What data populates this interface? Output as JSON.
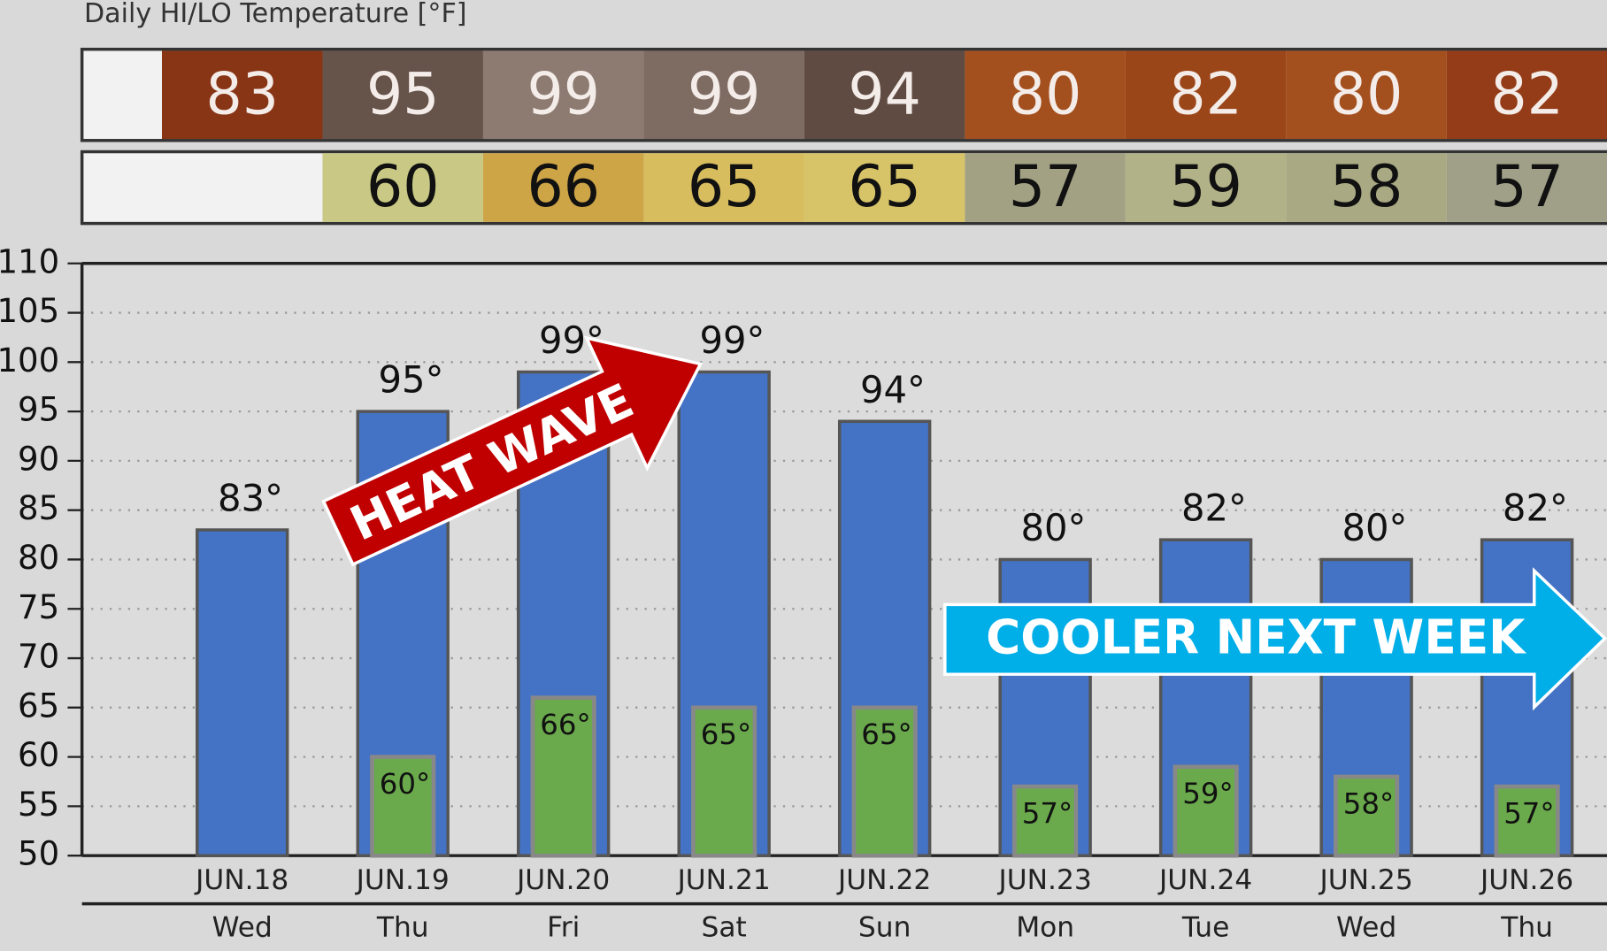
{
  "chart_data": {
    "type": "bar",
    "title": "Daily HI/LO Temperature [°F]",
    "categories": [
      "JUN.18",
      "JUN.19",
      "JUN.20",
      "JUN.21",
      "JUN.22",
      "JUN.23",
      "JUN.24",
      "JUN.25",
      "JUN.26"
    ],
    "weekdays": [
      "Wed",
      "Thu",
      "Fri",
      "Sat",
      "Sun",
      "Mon",
      "Tue",
      "Wed",
      "Thu"
    ],
    "series": [
      {
        "name": "HI",
        "color": "#4472c4",
        "values": [
          83,
          95,
          99,
          99,
          94,
          80,
          82,
          80,
          82
        ],
        "value_labels": [
          "83°",
          "95°",
          "99°",
          "99°",
          "94°",
          "80°",
          "82°",
          "80°",
          "82°"
        ],
        "cell_colors": [
          "#883516",
          "#66534a",
          "#8d7b72",
          "#7e6b62",
          "#5f4b42",
          "#a44f1e",
          "#9b4619",
          "#a44f1e",
          "#933c17"
        ]
      },
      {
        "name": "LO",
        "color": "#6aaa4c",
        "values": [
          null,
          60,
          66,
          65,
          65,
          57,
          59,
          58,
          57
        ],
        "value_labels": [
          null,
          "60°",
          "66°",
          "65°",
          "65°",
          "57°",
          "59°",
          "58°",
          "57°"
        ],
        "cell_colors": [
          null,
          "#c9c985",
          "#cda446",
          "#d7bd5e",
          "#d8c468",
          "#a2a184",
          "#b2b288",
          "#a9a983",
          "#a0a088"
        ]
      }
    ],
    "ylim": [
      50,
      110
    ],
    "yticks": [
      50,
      55,
      60,
      65,
      70,
      75,
      80,
      85,
      90,
      95,
      100,
      105,
      110
    ],
    "grid": true,
    "annotations": [
      "HEAT WAVE",
      "COOLER NEXT WEEK"
    ]
  }
}
